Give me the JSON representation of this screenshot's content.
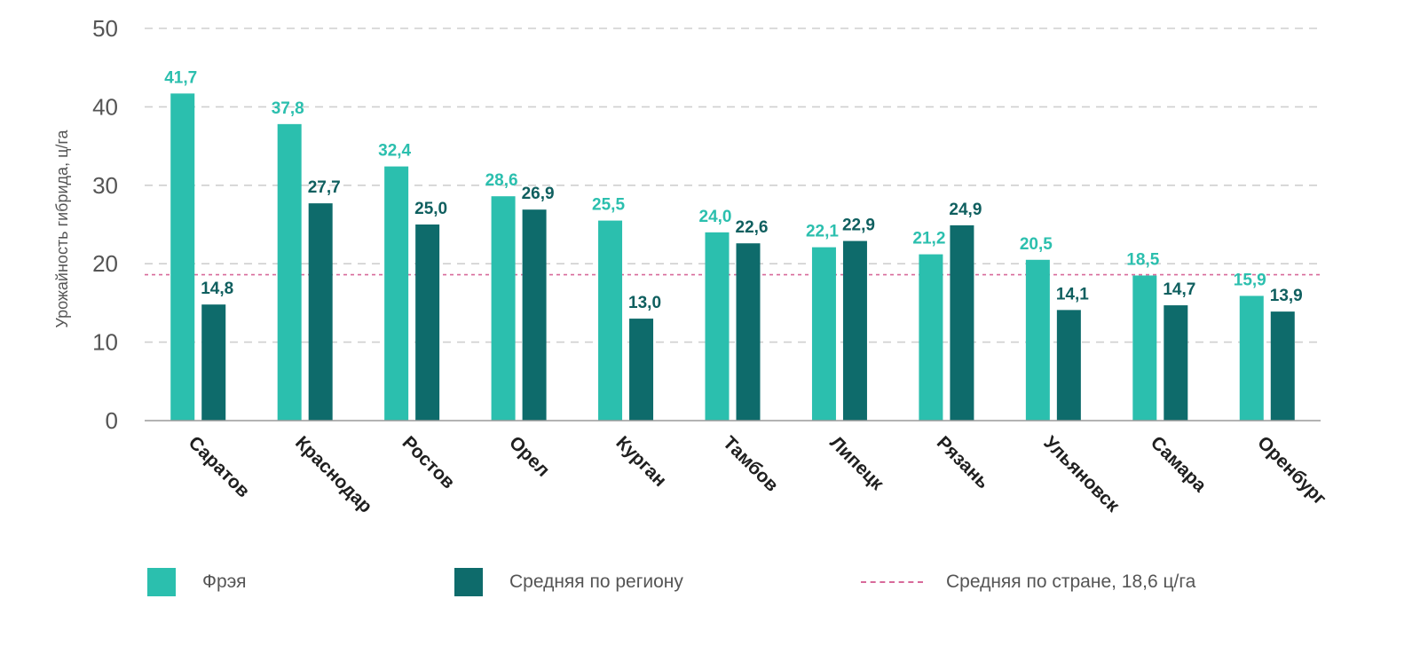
{
  "chart_data": {
    "type": "bar",
    "ylabel": "Урожайность гибрида, ц/га",
    "ylim": [
      0,
      50
    ],
    "yticks": [
      "0",
      "10",
      "20",
      "30",
      "40",
      "50"
    ],
    "categories": [
      "Саратов",
      "Краснодар",
      "Ростов",
      "Орел",
      "Курган",
      "Тамбов",
      "Липецк",
      "Рязань",
      "Ульяновск",
      "Самара",
      "Оренбург"
    ],
    "series": [
      {
        "name": "Фрэя",
        "color": "#2bbfae",
        "values": [
          41.7,
          37.8,
          32.4,
          28.6,
          25.5,
          24.0,
          22.1,
          21.2,
          20.5,
          18.5,
          15.9
        ],
        "labels": [
          "41,7",
          "37,8",
          "32,4",
          "28,6",
          "25,5",
          "24,0",
          "22,1",
          "21,2",
          "20,5",
          "18,5",
          "15,9"
        ]
      },
      {
        "name": "Средняя по региону",
        "color": "#0e6b6b",
        "values": [
          14.8,
          27.7,
          25.0,
          26.9,
          13.0,
          22.6,
          22.9,
          24.9,
          14.1,
          14.7,
          13.9
        ],
        "labels": [
          "14,8",
          "27,7",
          "25,0",
          "26,9",
          "13,0",
          "22,6",
          "22,9",
          "24,9",
          "14,1",
          "14,7",
          "13,9"
        ]
      }
    ],
    "reference_line": {
      "name": "Средняя по стране, 18,6 ц/га",
      "value": 18.6,
      "color": "#d86a9a",
      "style": "dotted"
    },
    "grid": true,
    "legend_position": "bottom"
  }
}
